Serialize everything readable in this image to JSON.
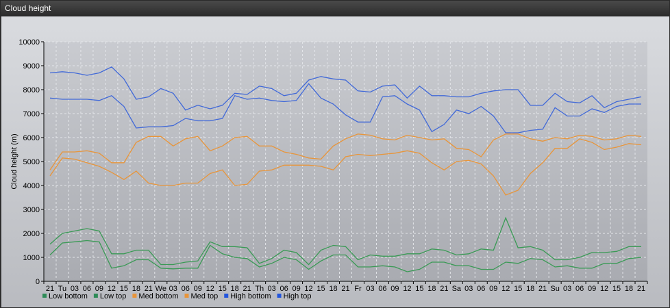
{
  "window": {
    "title": "Cloud height"
  },
  "chart_data": {
    "type": "line",
    "ylabel": "Cloud height (m)",
    "xlabel": "",
    "ylim": [
      0,
      10000
    ],
    "yticks": [
      0,
      1000,
      2000,
      3000,
      4000,
      5000,
      6000,
      7000,
      8000,
      9000,
      10000
    ],
    "grid": true,
    "legend_position": "bottom-left",
    "x": [
      "21",
      "Tu",
      "03",
      "06",
      "09",
      "12",
      "15",
      "18",
      "21",
      "We",
      "03",
      "06",
      "09",
      "12",
      "15",
      "18",
      "21",
      "Th",
      "03",
      "06",
      "09",
      "12",
      "15",
      "18",
      "21",
      "Fr",
      "03",
      "06",
      "09",
      "12",
      "15",
      "18",
      "21",
      "Sa",
      "03",
      "06",
      "09",
      "12",
      "15",
      "18",
      "21",
      "Su",
      "03",
      "06",
      "09",
      "12",
      "15",
      "18",
      "21"
    ],
    "series": [
      {
        "name": "Low bottom",
        "color": "#2e8b57",
        "values": [
          1100,
          1600,
          1650,
          1700,
          1650,
          550,
          650,
          900,
          900,
          550,
          520,
          550,
          550,
          1500,
          1150,
          1000,
          950,
          600,
          750,
          1000,
          900,
          500,
          850,
          1100,
          1100,
          600,
          600,
          650,
          600,
          400,
          500,
          800,
          800,
          650,
          650,
          500,
          500,
          800,
          750,
          950,
          900,
          600,
          650,
          550,
          550,
          750,
          750,
          950,
          1000
        ]
      },
      {
        "name": "Low top",
        "color": "#2e8b57",
        "values": [
          1550,
          2000,
          2100,
          2200,
          2100,
          1150,
          1150,
          1300,
          1300,
          700,
          700,
          800,
          850,
          1650,
          1450,
          1450,
          1400,
          750,
          950,
          1300,
          1200,
          700,
          1300,
          1500,
          1450,
          900,
          1100,
          1050,
          1050,
          1150,
          1150,
          1350,
          1300,
          1100,
          1150,
          1350,
          1300,
          2650,
          1400,
          1450,
          1300,
          900,
          900,
          1000,
          1200,
          1200,
          1250,
          1450,
          1450
        ]
      },
      {
        "name": "Med bottom",
        "color": "#e8953a",
        "values": [
          4400,
          5150,
          5100,
          4950,
          4800,
          4550,
          4250,
          4600,
          4100,
          4000,
          4000,
          4100,
          4100,
          4500,
          4650,
          4000,
          4050,
          4600,
          4650,
          4850,
          4850,
          4850,
          4800,
          4650,
          5200,
          5300,
          5250,
          5300,
          5350,
          5450,
          5350,
          4950,
          4650,
          5000,
          5050,
          4900,
          4400,
          3600,
          3800,
          4500,
          4950,
          5550,
          5550,
          5950,
          5800,
          5500,
          5600,
          5750,
          5700
        ]
      },
      {
        "name": "Med top",
        "color": "#e8953a",
        "values": [
          4650,
          5400,
          5400,
          5450,
          5350,
          4950,
          4950,
          5800,
          6050,
          6050,
          5650,
          5950,
          6050,
          5450,
          5650,
          6000,
          6050,
          5650,
          5650,
          5400,
          5300,
          5150,
          5100,
          5650,
          5950,
          6150,
          6100,
          5950,
          5900,
          6100,
          6000,
          5900,
          5950,
          5550,
          5500,
          5200,
          5900,
          6150,
          6150,
          5950,
          5850,
          6000,
          5950,
          6100,
          6050,
          5900,
          5950,
          6100,
          6050
        ]
      },
      {
        "name": "High bottom",
        "color": "#2255dd",
        "values": [
          7650,
          7600,
          7600,
          7600,
          7550,
          7750,
          7300,
          6400,
          6450,
          6450,
          6500,
          6800,
          6700,
          6700,
          6800,
          7750,
          7600,
          7650,
          7550,
          7500,
          7550,
          8250,
          7650,
          7400,
          6950,
          6650,
          6650,
          7700,
          7750,
          7400,
          7150,
          6250,
          6550,
          7150,
          7000,
          7300,
          6900,
          6200,
          6200,
          6300,
          6350,
          7250,
          6900,
          6900,
          7200,
          7050,
          7300,
          7400,
          7400
        ]
      },
      {
        "name": "High top",
        "color": "#2255dd",
        "values": [
          8700,
          8750,
          8700,
          8600,
          8700,
          8950,
          8450,
          7600,
          7700,
          8050,
          7850,
          7150,
          7350,
          7200,
          7350,
          7850,
          7800,
          8150,
          8050,
          7750,
          7850,
          8400,
          8550,
          8450,
          8400,
          7950,
          7900,
          8150,
          8200,
          7650,
          8150,
          7750,
          7750,
          7700,
          7700,
          7850,
          7950,
          8000,
          8000,
          7350,
          7350,
          7850,
          7500,
          7450,
          7750,
          7250,
          7500,
          7600,
          7700
        ]
      }
    ]
  }
}
